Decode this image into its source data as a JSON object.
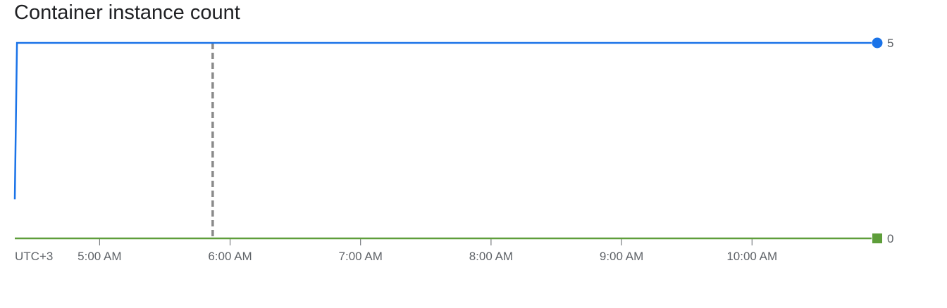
{
  "chart_data": {
    "type": "line",
    "title": "Container instance count",
    "timezone_label": "UTC+3",
    "x_range": [
      "04:21",
      "10:55"
    ],
    "x_ticks": [
      "5:00 AM",
      "6:00 AM",
      "7:00 AM",
      "8:00 AM",
      "9:00 AM",
      "10:00 AM"
    ],
    "x_tick_times": [
      "05:00",
      "06:00",
      "07:00",
      "08:00",
      "09:00",
      "10:00"
    ],
    "ylim": [
      0,
      5
    ],
    "marker_time": "05:52",
    "series": [
      {
        "color": "#1a73e8",
        "marker": "circle",
        "end_label": "5",
        "points": [
          [
            "04:21",
            1
          ],
          [
            "04:22",
            5
          ],
          [
            "10:55",
            5
          ]
        ]
      },
      {
        "color": "#5e9e3a",
        "marker": "square",
        "end_label": "0",
        "points": [
          [
            "04:21",
            0
          ],
          [
            "10:55",
            0
          ]
        ]
      }
    ],
    "grid": false,
    "legend": "none"
  }
}
